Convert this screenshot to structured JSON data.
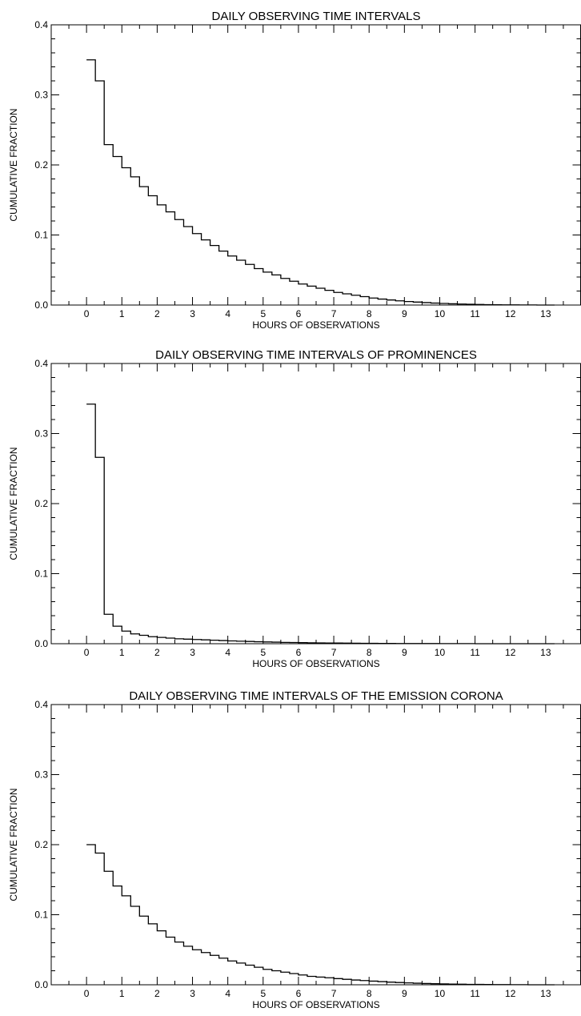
{
  "chart_data": [
    {
      "type": "line",
      "title": "DAILY OBSERVING TIME INTERVALS",
      "xlabel": "HOURS OF OBSERVATIONS",
      "ylabel": "CUMULATIVE FRACTION",
      "xlim": [
        -1,
        14
      ],
      "ylim": [
        0,
        0.4
      ],
      "xticks": [
        "0",
        "1",
        "2",
        "3",
        "4",
        "5",
        "6",
        "7",
        "8",
        "9",
        "10",
        "11",
        "12",
        "13"
      ],
      "yticks": [
        "0.0",
        "0.1",
        "0.2",
        "0.3",
        "0.4"
      ],
      "step_width": 0.25,
      "x_start": 0,
      "values": [
        0.35,
        0.32,
        0.229,
        0.212,
        0.196,
        0.183,
        0.169,
        0.156,
        0.143,
        0.133,
        0.122,
        0.112,
        0.102,
        0.093,
        0.085,
        0.077,
        0.07,
        0.064,
        0.058,
        0.052,
        0.047,
        0.043,
        0.038,
        0.034,
        0.03,
        0.027,
        0.024,
        0.021,
        0.018,
        0.016,
        0.014,
        0.012,
        0.01,
        0.0085,
        0.0072,
        0.006,
        0.005,
        0.0042,
        0.0035,
        0.0028,
        0.0023,
        0.0018,
        0.0014,
        0.0011,
        0.0008,
        0.0006,
        0.0004,
        0.0003,
        0.0002,
        0.0001,
        0.0001,
        0.0,
        0.0
      ]
    },
    {
      "type": "line",
      "title": "DAILY OBSERVING TIME INTERVALS OF PROMINENCES",
      "xlabel": "HOURS OF OBSERVATIONS",
      "ylabel": "CUMULATIVE FRACTION",
      "xlim": [
        -1,
        14
      ],
      "ylim": [
        0,
        0.4
      ],
      "xticks": [
        "0",
        "1",
        "2",
        "3",
        "4",
        "5",
        "6",
        "7",
        "8",
        "9",
        "10",
        "11",
        "12",
        "13"
      ],
      "yticks": [
        "0.0",
        "0.1",
        "0.2",
        "0.3",
        "0.4"
      ],
      "step_width": 0.25,
      "x_start": 0,
      "values": [
        0.342,
        0.266,
        0.042,
        0.025,
        0.018,
        0.014,
        0.012,
        0.01,
        0.009,
        0.008,
        0.007,
        0.0065,
        0.006,
        0.0055,
        0.005,
        0.0045,
        0.004,
        0.0036,
        0.0032,
        0.0028,
        0.0025,
        0.0022,
        0.0019,
        0.0017,
        0.0015,
        0.0013,
        0.0011,
        0.001,
        0.0009,
        0.0008,
        0.0007,
        0.0006,
        0.0005,
        0.0004,
        0.0004,
        0.0003,
        0.0003,
        0.0002,
        0.0002,
        0.0002,
        0.0001,
        0.0001,
        0.0001,
        0.0001,
        0.0,
        0.0,
        0.0,
        0.0,
        0.0,
        0.0,
        0.0,
        0.0,
        0.0
      ]
    },
    {
      "type": "line",
      "title": "DAILY OBSERVING TIME INTERVALS OF THE EMISSION CORONA",
      "xlabel": "HOURS OF OBSERVATIONS",
      "ylabel": "CUMULATIVE FRACTION",
      "xlim": [
        -1,
        14
      ],
      "ylim": [
        0,
        0.4
      ],
      "xticks": [
        "0",
        "1",
        "2",
        "3",
        "4",
        "5",
        "6",
        "7",
        "8",
        "9",
        "10",
        "11",
        "12",
        "13"
      ],
      "yticks": [
        "0.0",
        "0.1",
        "0.2",
        "0.3",
        "0.4"
      ],
      "step_width": 0.25,
      "x_start": 0,
      "values": [
        0.2,
        0.188,
        0.162,
        0.141,
        0.127,
        0.112,
        0.098,
        0.087,
        0.077,
        0.068,
        0.061,
        0.055,
        0.05,
        0.046,
        0.042,
        0.038,
        0.034,
        0.031,
        0.028,
        0.025,
        0.022,
        0.02,
        0.018,
        0.016,
        0.014,
        0.012,
        0.011,
        0.01,
        0.0088,
        0.0078,
        0.0068,
        0.006,
        0.0052,
        0.0045,
        0.0038,
        0.0032,
        0.0027,
        0.0022,
        0.0018,
        0.0015,
        0.0012,
        0.001,
        0.0008,
        0.0006,
        0.0005,
        0.0004,
        0.0003,
        0.0002,
        0.0001,
        0.0001,
        0.0,
        0.0,
        0.0
      ]
    }
  ]
}
